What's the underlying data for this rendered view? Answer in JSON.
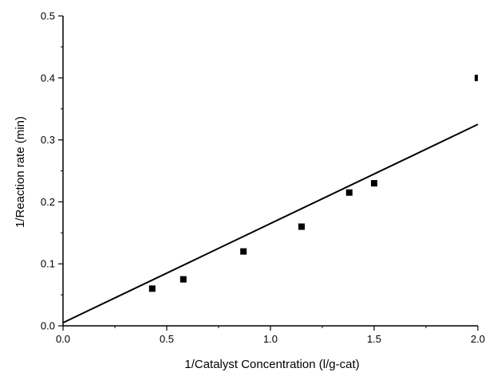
{
  "chart_data": {
    "type": "scatter",
    "title": "",
    "xlabel": "1/Catalyst Concentration (l/g-cat)",
    "ylabel": "1/Reaction rate (min)",
    "xlim": [
      0.0,
      2.0
    ],
    "ylim": [
      0.0,
      0.5
    ],
    "x_ticks": [
      "0.0",
      "0.5",
      "1.0",
      "1.5",
      "2.0"
    ],
    "y_ticks": [
      "0.0",
      "0.1",
      "0.2",
      "0.3",
      "0.4",
      "0.5"
    ],
    "grid": false,
    "legend": "none",
    "colors": {
      "axis": "#000000",
      "marker": "#000000",
      "line": "#000000"
    },
    "series": [
      {
        "kind": "points",
        "marker": "square",
        "x": [
          0.43,
          0.58,
          0.87,
          1.15,
          1.38,
          1.5,
          2.0
        ],
        "y": [
          0.06,
          0.075,
          0.12,
          0.16,
          0.215,
          0.23,
          0.4
        ]
      },
      {
        "kind": "fit-line",
        "x": [
          0.0,
          2.0
        ],
        "y": [
          0.005,
          0.325
        ]
      }
    ]
  }
}
